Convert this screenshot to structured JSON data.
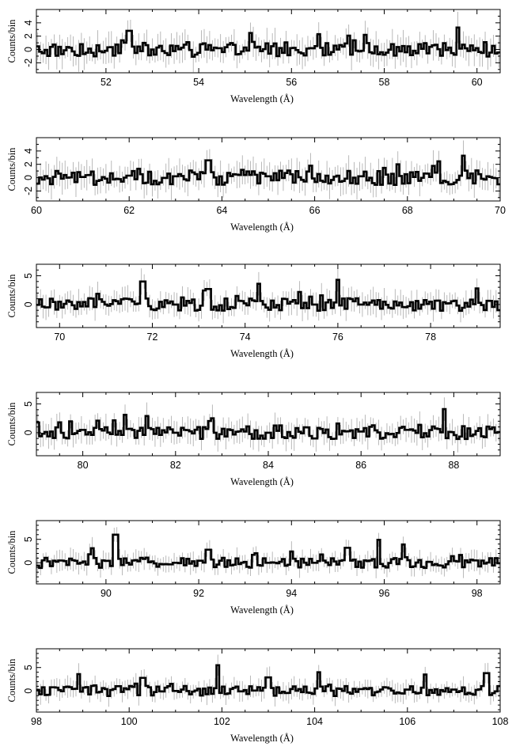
{
  "chart_data": [
    {
      "type": "line",
      "xlabel": "Wavelength (Å)",
      "ylabel": "Counts/bin",
      "xlim": [
        50.5,
        60.5
      ],
      "ylim": [
        -3.5,
        6
      ],
      "xticks": [
        52,
        54,
        56,
        58,
        60
      ],
      "yticks": [
        -2,
        0,
        2,
        4
      ],
      "series": [
        {
          "x": [
            51.0,
            52.0,
            52.5,
            53.0,
            54.0,
            55.0,
            56.0,
            56.6,
            57.0,
            57.6,
            58.0,
            59.0,
            59.6,
            60.0
          ],
          "values": [
            0.4,
            -0.2,
            2.8,
            0.0,
            -0.5,
            0.3,
            0.2,
            2.3,
            0.0,
            2.2,
            -0.8,
            0.4,
            3.3,
            0.2
          ]
        }
      ]
    },
    {
      "type": "line",
      "xlabel": "Wavelength (Å)",
      "ylabel": "Counts/bin",
      "xlim": [
        60,
        70
      ],
      "ylim": [
        -3.5,
        6
      ],
      "xticks": [
        60,
        62,
        64,
        66,
        68,
        70
      ],
      "yticks": [
        -2,
        0,
        2,
        4
      ],
      "series": [
        {
          "x": [
            60.5,
            61.0,
            62.0,
            63.0,
            63.7,
            64.5,
            65.0,
            65.9,
            66.5,
            67.0,
            67.8,
            68.5,
            69.2,
            70.0
          ],
          "values": [
            0.6,
            0.1,
            0.3,
            0.2,
            2.6,
            0.4,
            0.2,
            1.8,
            0.3,
            0.2,
            2.0,
            0.1,
            3.3,
            -1.0
          ]
        }
      ]
    },
    {
      "type": "line",
      "xlabel": "Wavelength (Å)",
      "ylabel": "Counts/bin",
      "xlim": [
        69.5,
        79.5
      ],
      "ylim": [
        -4,
        7
      ],
      "xticks": [
        70,
        72,
        74,
        76,
        78
      ],
      "yticks": [
        0,
        5
      ],
      "series": [
        {
          "x": [
            70.0,
            71.0,
            71.8,
            72.5,
            73.2,
            74.0,
            74.3,
            75.0,
            75.5,
            76.0,
            76.5,
            77.0,
            78.0,
            79.0
          ],
          "values": [
            0.5,
            0.0,
            4.0,
            0.0,
            2.7,
            0.2,
            3.6,
            0.5,
            0.0,
            4.3,
            0.0,
            0.5,
            0.5,
            2.8
          ]
        }
      ]
    },
    {
      "type": "line",
      "xlabel": "Wavelength (Å)",
      "ylabel": "Counts/bin",
      "xlim": [
        79,
        89
      ],
      "ylim": [
        -4,
        7
      ],
      "xticks": [
        80,
        82,
        84,
        86,
        88
      ],
      "yticks": [
        0,
        5
      ],
      "series": [
        {
          "x": [
            79.5,
            80.0,
            80.9,
            81.4,
            82.0,
            82.8,
            83.5,
            84.0,
            85.0,
            85.5,
            86.0,
            87.0,
            87.8,
            88.5
          ],
          "values": [
            1.8,
            0.5,
            3.1,
            2.9,
            0.0,
            2.5,
            0.2,
            0.0,
            -1.0,
            1.6,
            0.2,
            0.5,
            4.1,
            0.3
          ]
        }
      ]
    },
    {
      "type": "line",
      "xlabel": "Wavelength (Å)",
      "ylabel": "Counts/bin",
      "xlim": [
        88.5,
        98.5
      ],
      "ylim": [
        -4.5,
        9
      ],
      "xticks": [
        90,
        92,
        94,
        96,
        98
      ],
      "yticks": [
        0,
        5
      ],
      "series": [
        {
          "x": [
            89.0,
            89.7,
            90.2,
            91.0,
            91.5,
            92.2,
            93.0,
            93.5,
            94.0,
            94.5,
            95.2,
            95.9,
            96.4,
            97.0,
            98.0
          ],
          "values": [
            0.5,
            3.1,
            6.0,
            0.3,
            0.0,
            2.8,
            0.2,
            0.0,
            2.4,
            0.0,
            3.2,
            4.9,
            3.9,
            0.2,
            0.5
          ]
        }
      ]
    },
    {
      "type": "line",
      "xlabel": "Wavelength (Å)",
      "ylabel": "Counts/bin",
      "xlim": [
        98,
        108
      ],
      "ylim": [
        -4.5,
        9
      ],
      "xticks": [
        98,
        100,
        102,
        104,
        106,
        108
      ],
      "yticks": [
        0,
        5
      ],
      "series": [
        {
          "x": [
            98.5,
            98.9,
            99.5,
            100.3,
            101.0,
            101.9,
            102.5,
            103.0,
            103.5,
            104.1,
            104.6,
            105.0,
            106.0,
            106.4,
            107.0,
            107.7
          ],
          "values": [
            0.2,
            3.6,
            0.4,
            2.8,
            0.0,
            5.5,
            0.2,
            2.9,
            0.4,
            4.0,
            0.0,
            0.4,
            0.3,
            3.5,
            0.3,
            3.8
          ]
        }
      ]
    }
  ]
}
